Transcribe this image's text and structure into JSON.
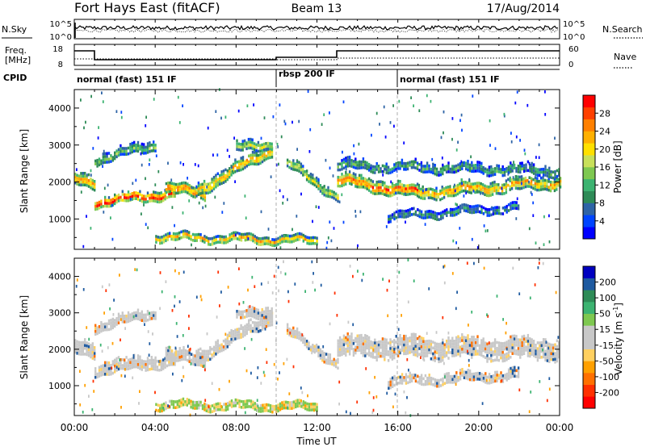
{
  "header": {
    "station": "Fort Hays East (fitACF)",
    "beam": "Beam 13",
    "date": "17/Aug/2014"
  },
  "noise_panel": {
    "left_label": "N.Sky",
    "right_label": "N.Search",
    "left_ticks": [
      "10^5",
      "10^0"
    ],
    "right_ticks": [
      "10^5",
      "10^0"
    ]
  },
  "freq_panel": {
    "left_label_1": "Freq.",
    "left_label_2": "[MHz]",
    "left_ticks": [
      "18",
      "8"
    ],
    "right_label": "Nave",
    "right_ticks": [
      "60",
      "0"
    ],
    "cpid_label": "CPID"
  },
  "cpid_segments": [
    {
      "label": "normal (fast) 151 IF",
      "start_hour": 0
    },
    {
      "label": "rbsp 200 IF",
      "start_hour": 10
    },
    {
      "label": "normal (fast) 151 IF",
      "start_hour": 16
    }
  ],
  "x_axis": {
    "title": "Time UT",
    "ticks": [
      "00:00",
      "04:00",
      "08:00",
      "12:00",
      "16:00",
      "20:00",
      "00:00"
    ]
  },
  "chart_data": [
    {
      "type": "heatmap",
      "parameter": "power",
      "xlabel": "Time UT",
      "ylabel": "Slant Range [km]",
      "xlim_hours": [
        0,
        24
      ],
      "ylim": [
        180,
        4500
      ],
      "yticks": [
        "1000",
        "2000",
        "3000",
        "4000"
      ],
      "colorbar": {
        "title": "Power [dB]",
        "ticks": [
          "28",
          "24",
          "20",
          "16",
          "12",
          "8",
          "4"
        ],
        "colors": [
          "#0000ff",
          "#0044ff",
          "#2e64a6",
          "#2e8b57",
          "#3cb371",
          "#7ec850",
          "#c8e05a",
          "#ffe000",
          "#ffb000",
          "#ff8000",
          "#ff4000",
          "#ff0000"
        ]
      },
      "echo_bands": [
        {
          "start": 0.0,
          "end": 1.0,
          "center_start": 2050,
          "center_end": 2000,
          "width": 300,
          "level": 0.75
        },
        {
          "start": 1.0,
          "end": 5.0,
          "center_start": 1450,
          "center_end": 1700,
          "width": 250,
          "level": 0.9
        },
        {
          "start": 4.5,
          "end": 6.5,
          "center_start": 1850,
          "center_end": 1650,
          "width": 280,
          "level": 0.8
        },
        {
          "start": 6.0,
          "end": 9.8,
          "center_start": 1750,
          "center_end": 2900,
          "width": 300,
          "level": 0.7
        },
        {
          "start": 1.0,
          "end": 4.0,
          "center_start": 2600,
          "center_end": 3000,
          "width": 250,
          "level": 0.4
        },
        {
          "start": 8.0,
          "end": 9.8,
          "center_start": 2900,
          "center_end": 3050,
          "width": 250,
          "level": 0.55
        },
        {
          "start": 10.5,
          "end": 13.0,
          "center_start": 2500,
          "center_end": 1600,
          "width": 250,
          "level": 0.55
        },
        {
          "start": 13.0,
          "end": 17.0,
          "center_start": 2050,
          "center_end": 1700,
          "width": 300,
          "level": 0.85
        },
        {
          "start": 17.0,
          "end": 24.0,
          "center_start": 1700,
          "center_end": 2000,
          "width": 300,
          "level": 0.7
        },
        {
          "start": 13.0,
          "end": 24.0,
          "center_start": 2450,
          "center_end": 2300,
          "width": 250,
          "level": 0.35
        },
        {
          "start": 15.5,
          "end": 22.0,
          "center_start": 1050,
          "center_end": 1300,
          "width": 200,
          "level": 0.3
        },
        {
          "start": 4.0,
          "end": 12.0,
          "center_start": 500,
          "center_end": 400,
          "width": 200,
          "level": 0.7
        }
      ]
    },
    {
      "type": "heatmap",
      "parameter": "velocity",
      "xlabel": "Time UT",
      "ylabel": "Slant Range [km]",
      "xlim_hours": [
        0,
        24
      ],
      "ylim": [
        180,
        4500
      ],
      "yticks": [
        "1000",
        "2000",
        "3000",
        "4000"
      ],
      "colorbar": {
        "title": "Velocity [m s",
        "title_exponent": "-1",
        "title_close": "]",
        "ticks": [
          "200",
          "100",
          "50",
          "15",
          "-15",
          "-50",
          "-100",
          "-200"
        ],
        "colors": [
          "#ff0000",
          "#ff3000",
          "#ff7000",
          "#ffa000",
          "#ffd060",
          "#c8c8c8",
          "#c8c8c8",
          "#7ec850",
          "#3cb371",
          "#2e8b57",
          "#1e5aa0",
          "#0000c0"
        ]
      },
      "dominant_class": "ground scatter (grey)",
      "echo_bands": [
        {
          "start": 0.0,
          "end": 1.0,
          "center_start": 2050,
          "center_end": 2000,
          "width": 380,
          "level": 0.5
        },
        {
          "start": 1.0,
          "end": 5.0,
          "center_start": 1450,
          "center_end": 1700,
          "width": 300,
          "level": 0.5
        },
        {
          "start": 4.5,
          "end": 6.5,
          "center_start": 1850,
          "center_end": 1650,
          "width": 300,
          "level": 0.5
        },
        {
          "start": 6.0,
          "end": 9.8,
          "center_start": 1750,
          "center_end": 2900,
          "width": 300,
          "level": 0.5
        },
        {
          "start": 1.0,
          "end": 4.0,
          "center_start": 2600,
          "center_end": 3000,
          "width": 250,
          "level": 0.5
        },
        {
          "start": 8.0,
          "end": 9.8,
          "center_start": 2900,
          "center_end": 3050,
          "width": 250,
          "level": 0.5
        },
        {
          "start": 10.5,
          "end": 13.0,
          "center_start": 2500,
          "center_end": 1600,
          "width": 250,
          "level": 0.5
        },
        {
          "start": 13.0,
          "end": 24.0,
          "center_start": 2050,
          "center_end": 2000,
          "width": 500,
          "level": 0.5
        },
        {
          "start": 15.5,
          "end": 22.0,
          "center_start": 1100,
          "center_end": 1300,
          "width": 250,
          "level": 0.5
        },
        {
          "start": 4.0,
          "end": 12.0,
          "center_start": 450,
          "center_end": 400,
          "width": 200,
          "level": 0.75
        }
      ]
    }
  ]
}
